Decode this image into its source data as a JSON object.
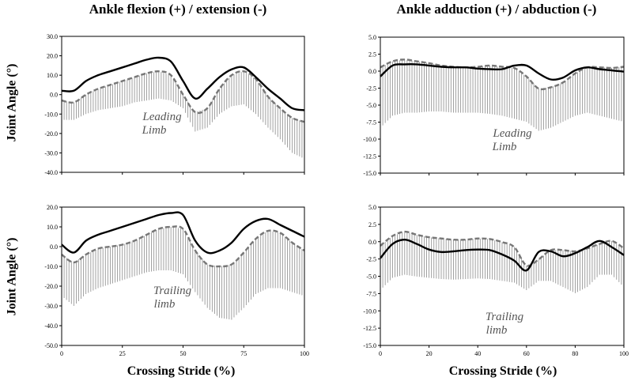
{
  "chart_data": [
    {
      "type": "line",
      "title": "Ankle flexion (+) / extension (-)",
      "xlabel": "",
      "ylabel": "Joint Angle (°)",
      "annotation": [
        "Leading",
        "Limb"
      ],
      "xlim": [
        0,
        100
      ],
      "ylim": [
        -40,
        30
      ],
      "x_ticks": [
        "",
        "",
        "",
        "",
        ""
      ],
      "y_ticks": [
        "30.0",
        "20.0",
        "10.0",
        "0.0",
        "-10.0",
        "-20.0",
        "-30.0",
        "-40.0"
      ],
      "x": [
        0,
        5,
        10,
        15,
        20,
        25,
        30,
        35,
        40,
        45,
        50,
        55,
        60,
        65,
        70,
        75,
        80,
        85,
        90,
        95,
        100
      ],
      "series": [
        {
          "style": "solid",
          "color": "#000000",
          "values": [
            2,
            2,
            7,
            10,
            12,
            14,
            16,
            18,
            19,
            17,
            7,
            -2,
            3,
            9,
            13,
            14,
            9,
            3,
            -2,
            -7,
            -8
          ]
        },
        {
          "style": "dashed",
          "color": "#777777",
          "values": [
            -3,
            -4,
            0,
            3,
            5,
            7,
            9,
            11,
            12,
            10,
            0,
            -9,
            -7,
            3,
            10,
            12,
            8,
            -1,
            -7,
            -12,
            -14
          ],
          "sd_lower": [
            -13,
            -13,
            -10,
            -8,
            -7,
            -6,
            -4,
            -3,
            -2,
            -3,
            -7,
            -19,
            -17,
            -10,
            -6,
            -5,
            -10,
            -17,
            -23,
            -30,
            -33
          ]
        }
      ]
    },
    {
      "type": "line",
      "title": "Ankle adduction (+) / abduction (-)",
      "xlabel": "",
      "ylabel": "",
      "annotation": [
        "Leading",
        "Limb"
      ],
      "xlim": [
        0,
        100
      ],
      "ylim": [
        -15,
        7.5
      ],
      "x_ticks": [
        "",
        "",
        "",
        "",
        "",
        ""
      ],
      "y_ticks": [
        "5.0",
        "2.5",
        "0.0",
        "-2.5",
        "-5.0",
        "-7.5",
        "-10.0",
        "-12.5",
        "-15.0"
      ],
      "x": [
        0,
        5,
        10,
        15,
        20,
        25,
        30,
        35,
        40,
        45,
        50,
        55,
        60,
        65,
        70,
        75,
        80,
        85,
        90,
        95,
        100
      ],
      "series": [
        {
          "style": "solid",
          "color": "#000000",
          "values": [
            1,
            2.8,
            3,
            3,
            2.8,
            2.6,
            2.5,
            2.5,
            2.3,
            2.2,
            2.2,
            2.8,
            2.8,
            1.5,
            0.5,
            0.8,
            2,
            2.5,
            2.2,
            2,
            1.8
          ]
        },
        {
          "style": "dashed",
          "color": "#777777",
          "values": [
            2.5,
            3.5,
            3.8,
            3.5,
            3.2,
            2.8,
            2.6,
            2.5,
            2.6,
            2.8,
            2.6,
            2.4,
            1,
            -1,
            -0.8,
            0,
            1.5,
            2.5,
            2.5,
            2.4,
            2.6
          ],
          "sd_lower": [
            -7.5,
            -5.5,
            -5,
            -5,
            -4.8,
            -4.8,
            -5,
            -5,
            -5,
            -5.2,
            -5.5,
            -6,
            -6.5,
            -8,
            -7.5,
            -6.5,
            -5.5,
            -5,
            -5.5,
            -6,
            -6.5
          ]
        }
      ]
    },
    {
      "type": "line",
      "title": "",
      "xlabel": "Crossing Stride (%)",
      "ylabel": "Joint Angle (°)",
      "annotation": [
        "Trailing",
        "limb"
      ],
      "xlim": [
        0,
        100
      ],
      "ylim": [
        -50,
        20
      ],
      "x_ticks": [
        "0",
        "25",
        "50",
        "75",
        "100"
      ],
      "y_ticks": [
        "20.0",
        "10.0",
        "0.0",
        "-10.0",
        "-20.0",
        "-30.0",
        "-40.0",
        "-50.0"
      ],
      "x": [
        0,
        5,
        10,
        15,
        20,
        25,
        30,
        35,
        40,
        45,
        50,
        55,
        60,
        65,
        70,
        75,
        80,
        85,
        90,
        95,
        100
      ],
      "series": [
        {
          "style": "solid",
          "color": "#000000",
          "values": [
            1,
            -3,
            3,
            6,
            8,
            10,
            12,
            14,
            16,
            17,
            16,
            3,
            -3,
            -2,
            2,
            9,
            13,
            14,
            11,
            8,
            5
          ]
        },
        {
          "style": "dashed",
          "color": "#777777",
          "values": [
            -4,
            -8,
            -4,
            -1,
            0,
            1,
            3,
            6,
            9,
            10,
            9,
            -2,
            -9,
            -10,
            -9,
            -3,
            4,
            8,
            7,
            2,
            -2
          ],
          "sd_lower": [
            -25,
            -30,
            -24,
            -21,
            -19,
            -17,
            -15,
            -13,
            -12,
            -12,
            -14,
            -23,
            -31,
            -36,
            -37,
            -31,
            -24,
            -21,
            -21,
            -23,
            -25
          ]
        }
      ]
    },
    {
      "type": "line",
      "title": "",
      "xlabel": "Crossing Stride (%)",
      "ylabel": "",
      "annotation": [
        "Trailing",
        "limb"
      ],
      "xlim": [
        0,
        100
      ],
      "ylim": [
        -15,
        7.5
      ],
      "x_ticks": [
        "0",
        "20",
        "40",
        "60",
        "80",
        "100"
      ],
      "y_ticks": [
        "5.0",
        "2.5",
        "0.0",
        "-2.5",
        "-5.0",
        "-7.5",
        "-10.0",
        "-12.5",
        "-15.0"
      ],
      "x": [
        0,
        5,
        10,
        15,
        20,
        25,
        30,
        35,
        40,
        45,
        50,
        55,
        60,
        65,
        70,
        75,
        80,
        85,
        90,
        95,
        100
      ],
      "series": [
        {
          "style": "solid",
          "color": "#000000",
          "values": [
            -0.8,
            1.5,
            2.2,
            1.5,
            0.6,
            0.2,
            0.3,
            0.5,
            0.6,
            0.5,
            -0.2,
            -1.2,
            -2.8,
            0.2,
            0.3,
            -0.5,
            0,
            1,
            2,
            1,
            -0.3
          ]
        },
        {
          "style": "dashed",
          "color": "#777777",
          "values": [
            1.2,
            2.8,
            3.5,
            3,
            2.6,
            2.4,
            2.2,
            2.2,
            2.4,
            2.3,
            1.8,
            1,
            -2,
            -1,
            0.5,
            0.5,
            0.3,
            0.8,
            1.5,
            2,
            0.8
          ],
          "sd_lower": [
            -6,
            -4,
            -3.5,
            -3.8,
            -4,
            -4.2,
            -4.3,
            -4.2,
            -4.1,
            -4.2,
            -4.5,
            -4.8,
            -6,
            -4.5,
            -4.5,
            -5.5,
            -6.5,
            -5.5,
            -3.5,
            -3.5,
            -5.5
          ]
        }
      ]
    }
  ]
}
